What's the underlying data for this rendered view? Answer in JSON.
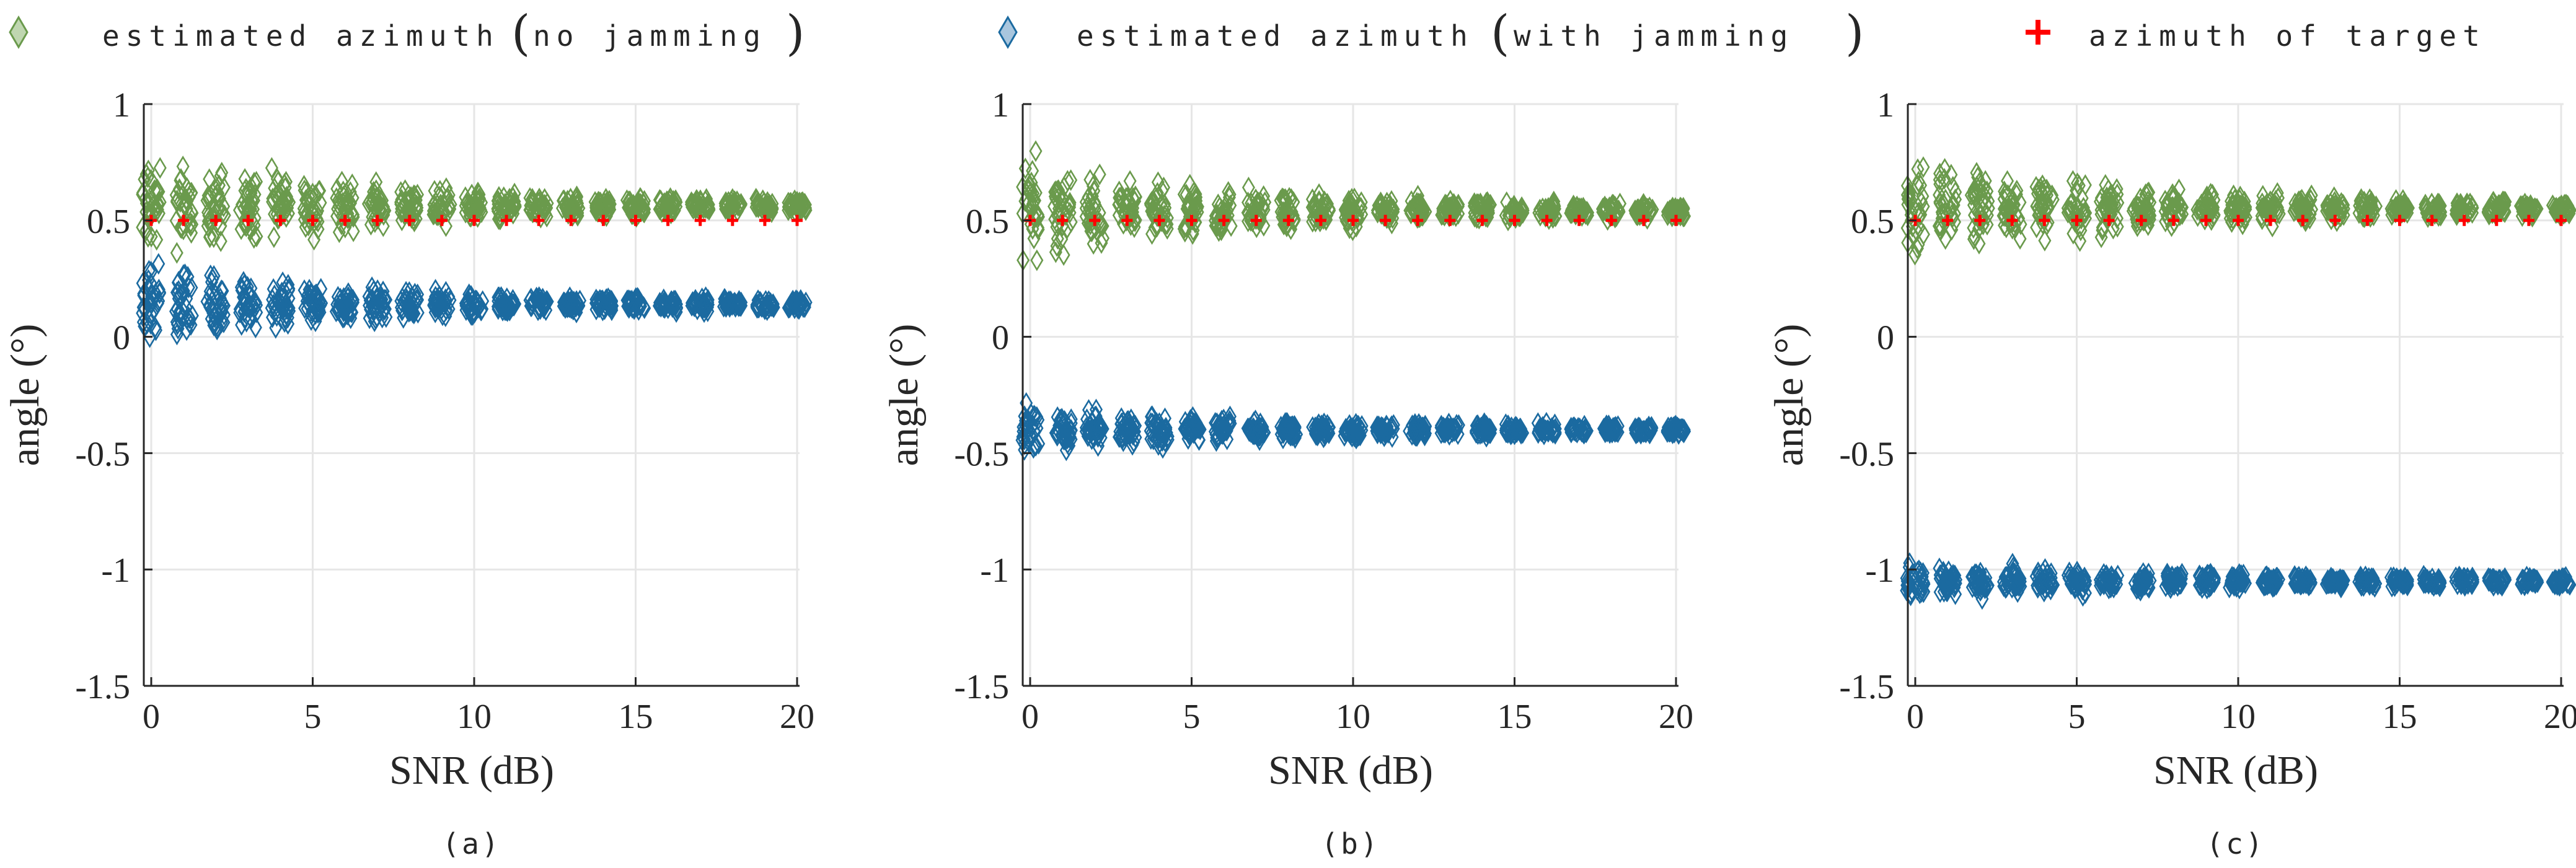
{
  "legend": {
    "no_jamming": "estimated azimuth",
    "no_jamming_paren": "no jamming",
    "with_jamming": "estimated azimuth",
    "with_jamming_paren": "with jamming",
    "target": "azimuth of target"
  },
  "colors": {
    "no_jamming": "#6a9a4c",
    "no_jamming_legend_fill": "#bfd6b0",
    "with_jamming": "#1b6aa0",
    "with_jamming_legend_fill": "#a9c6de",
    "target": "#ff0000",
    "grid": "#e6e6e6",
    "axis": "#262626"
  },
  "chart_data": [
    {
      "type": "scatter",
      "subplot_label": "(a)",
      "xlabel": "SNR (dB)",
      "ylabel": "angle (°)",
      "xlim": [
        0,
        20
      ],
      "ylim": [
        -1.5,
        1
      ],
      "xticks": [
        "0",
        "5",
        "10",
        "15",
        "20"
      ],
      "yticks": [
        "1",
        "0.5",
        "0",
        "-0.5",
        "-1",
        "-1.5"
      ],
      "grid": true,
      "x": [
        0,
        1,
        2,
        3,
        4,
        5,
        6,
        7,
        8,
        9,
        10,
        11,
        12,
        13,
        14,
        15,
        16,
        17,
        18,
        19,
        20
      ],
      "series": [
        {
          "name": "estimated azimuth (no jamming)",
          "marker": "diamond",
          "center": [
            0.56,
            0.56,
            0.56,
            0.56,
            0.56,
            0.56,
            0.56,
            0.56,
            0.56,
            0.56,
            0.56,
            0.56,
            0.56,
            0.56,
            0.56,
            0.56,
            0.56,
            0.56,
            0.56,
            0.56,
            0.56
          ],
          "spread": [
            0.3,
            0.26,
            0.22,
            0.2,
            0.18,
            0.16,
            0.14,
            0.12,
            0.11,
            0.1,
            0.09,
            0.08,
            0.07,
            0.065,
            0.06,
            0.055,
            0.05,
            0.045,
            0.042,
            0.04,
            0.038
          ]
        },
        {
          "name": "estimated azimuth (with jamming)",
          "marker": "diamond",
          "center": [
            0.14,
            0.14,
            0.14,
            0.14,
            0.14,
            0.14,
            0.14,
            0.14,
            0.14,
            0.14,
            0.14,
            0.14,
            0.14,
            0.14,
            0.14,
            0.14,
            0.14,
            0.14,
            0.14,
            0.14,
            0.14
          ],
          "spread": [
            0.25,
            0.2,
            0.18,
            0.16,
            0.14,
            0.12,
            0.1,
            0.09,
            0.08,
            0.075,
            0.07,
            0.06,
            0.055,
            0.05,
            0.045,
            0.042,
            0.04,
            0.038,
            0.035,
            0.033,
            0.03
          ]
        },
        {
          "name": "azimuth of target",
          "marker": "plus",
          "values": [
            0.5,
            0.5,
            0.5,
            0.5,
            0.5,
            0.5,
            0.5,
            0.5,
            0.5,
            0.5,
            0.5,
            0.5,
            0.5,
            0.5,
            0.5,
            0.5,
            0.5,
            0.5,
            0.5,
            0.5,
            0.5
          ]
        }
      ]
    },
    {
      "type": "scatter",
      "subplot_label": "(b)",
      "xlabel": "SNR (dB)",
      "ylabel": "angle (°)",
      "xlim": [
        0,
        20
      ],
      "ylim": [
        -1.5,
        1
      ],
      "xticks": [
        "0",
        "5",
        "10",
        "15",
        "20"
      ],
      "yticks": [
        "1",
        "0.5",
        "0",
        "-0.5",
        "-1",
        "-1.5"
      ],
      "grid": true,
      "x": [
        0,
        1,
        2,
        3,
        4,
        5,
        6,
        7,
        8,
        9,
        10,
        11,
        12,
        13,
        14,
        15,
        16,
        17,
        18,
        19,
        20
      ],
      "series": [
        {
          "name": "estimated azimuth (no jamming)",
          "marker": "diamond",
          "center": [
            0.54,
            0.54,
            0.54,
            0.54,
            0.54,
            0.54,
            0.54,
            0.54,
            0.54,
            0.54,
            0.54,
            0.54,
            0.54,
            0.54,
            0.54,
            0.54,
            0.54,
            0.54,
            0.54,
            0.54,
            0.54
          ],
          "spread": [
            0.28,
            0.24,
            0.21,
            0.19,
            0.17,
            0.15,
            0.13,
            0.12,
            0.11,
            0.1,
            0.09,
            0.08,
            0.07,
            0.065,
            0.06,
            0.055,
            0.05,
            0.045,
            0.042,
            0.04,
            0.038
          ]
        },
        {
          "name": "estimated azimuth (with jamming)",
          "marker": "diamond",
          "center": [
            -0.4,
            -0.4,
            -0.4,
            -0.4,
            -0.4,
            -0.4,
            -0.4,
            -0.4,
            -0.4,
            -0.4,
            -0.4,
            -0.4,
            -0.4,
            -0.4,
            -0.4,
            -0.4,
            -0.4,
            -0.4,
            -0.4,
            -0.4,
            -0.4
          ],
          "spread": [
            0.14,
            0.12,
            0.11,
            0.1,
            0.09,
            0.08,
            0.07,
            0.065,
            0.06,
            0.055,
            0.05,
            0.045,
            0.042,
            0.04,
            0.038,
            0.035,
            0.033,
            0.03,
            0.03,
            0.028,
            0.026
          ]
        },
        {
          "name": "azimuth of target",
          "marker": "plus",
          "values": [
            0.5,
            0.5,
            0.5,
            0.5,
            0.5,
            0.5,
            0.5,
            0.5,
            0.5,
            0.5,
            0.5,
            0.5,
            0.5,
            0.5,
            0.5,
            0.5,
            0.5,
            0.5,
            0.5,
            0.5,
            0.5
          ]
        }
      ]
    },
    {
      "type": "scatter",
      "subplot_label": "(c)",
      "xlabel": "SNR (dB)",
      "ylabel": "angle (°)",
      "xlim": [
        0,
        20
      ],
      "ylim": [
        -1.5,
        1
      ],
      "xticks": [
        "0",
        "5",
        "10",
        "15",
        "20"
      ],
      "yticks": [
        "1",
        "0.5",
        "0",
        "-0.5",
        "-1",
        "-1.5"
      ],
      "grid": true,
      "x": [
        0,
        1,
        2,
        3,
        4,
        5,
        6,
        7,
        8,
        9,
        10,
        11,
        12,
        13,
        14,
        15,
        16,
        17,
        18,
        19,
        20
      ],
      "series": [
        {
          "name": "estimated azimuth (no jamming)",
          "marker": "diamond",
          "center": [
            0.55,
            0.55,
            0.55,
            0.55,
            0.55,
            0.55,
            0.55,
            0.55,
            0.55,
            0.55,
            0.55,
            0.55,
            0.55,
            0.55,
            0.55,
            0.55,
            0.55,
            0.55,
            0.55,
            0.55,
            0.55
          ],
          "spread": [
            0.32,
            0.27,
            0.22,
            0.2,
            0.18,
            0.16,
            0.14,
            0.12,
            0.11,
            0.1,
            0.09,
            0.08,
            0.07,
            0.065,
            0.06,
            0.055,
            0.05,
            0.045,
            0.042,
            0.04,
            0.038
          ]
        },
        {
          "name": "estimated azimuth (with jamming)",
          "marker": "diamond",
          "center": [
            -1.05,
            -1.05,
            -1.05,
            -1.05,
            -1.05,
            -1.05,
            -1.05,
            -1.05,
            -1.05,
            -1.05,
            -1.05,
            -1.05,
            -1.05,
            -1.05,
            -1.05,
            -1.05,
            -1.05,
            -1.05,
            -1.05,
            -1.05,
            -1.05
          ],
          "spread": [
            0.11,
            0.1,
            0.09,
            0.085,
            0.08,
            0.07,
            0.06,
            0.055,
            0.05,
            0.045,
            0.042,
            0.04,
            0.038,
            0.035,
            0.033,
            0.03,
            0.03,
            0.028,
            0.026,
            0.025,
            0.024
          ]
        },
        {
          "name": "azimuth of target",
          "marker": "plus",
          "values": [
            0.5,
            0.5,
            0.5,
            0.5,
            0.5,
            0.5,
            0.5,
            0.5,
            0.5,
            0.5,
            0.5,
            0.5,
            0.5,
            0.5,
            0.5,
            0.5,
            0.5,
            0.5,
            0.5,
            0.5,
            0.5
          ]
        }
      ]
    }
  ]
}
